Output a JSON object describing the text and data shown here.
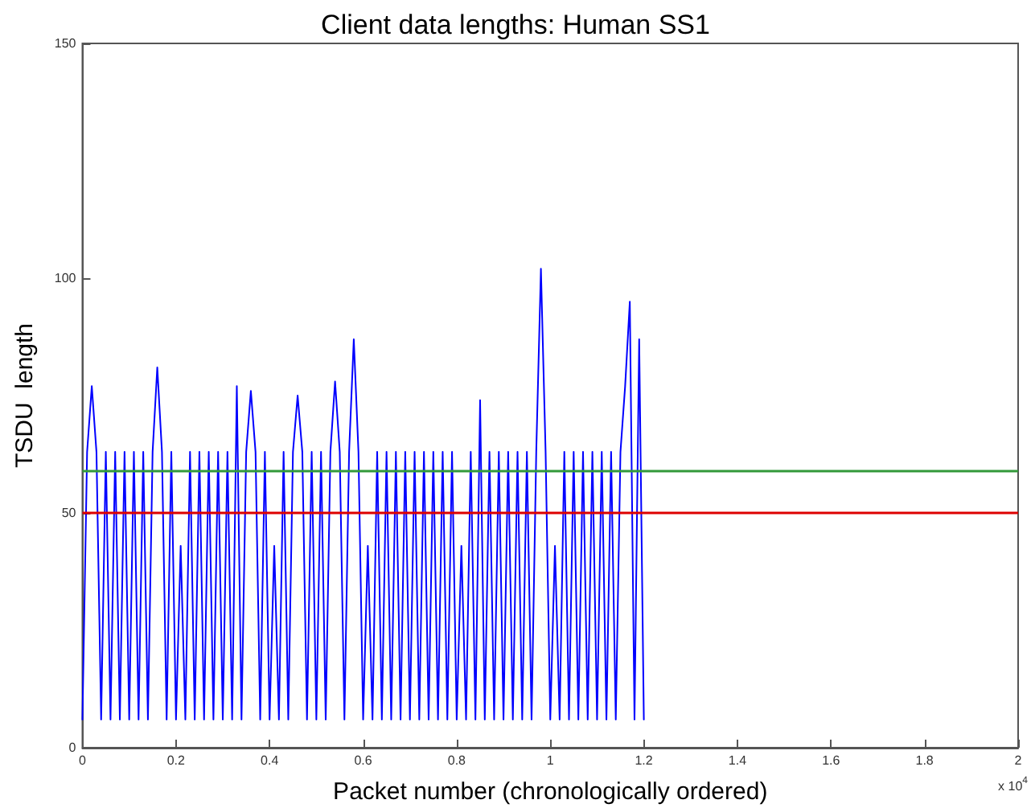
{
  "chart_data": {
    "type": "line",
    "title": "Client data lengths: Human SS1",
    "xlabel": "Packet number (chronologically ordered)",
    "ylabel": "TSDU  length",
    "annotations": [
      "x 10$^{4}$"
    ],
    "x": [
      0,
      0.01,
      0.02,
      0.03,
      0.04,
      0.05,
      0.06,
      0.07,
      0.08,
      0.09,
      0.1,
      0.11,
      0.12,
      0.13,
      0.14,
      0.15,
      0.16,
      0.17,
      0.18,
      0.19,
      0.2,
      0.21,
      0.22,
      0.23,
      0.24,
      0.25,
      0.26,
      0.27,
      0.28,
      0.29,
      0.3,
      0.31,
      0.32,
      0.33,
      0.34,
      0.35,
      0.36,
      0.37,
      0.38,
      0.39,
      0.4,
      0.41,
      0.42,
      0.43,
      0.44,
      0.45,
      0.46,
      0.47,
      0.48,
      0.49,
      0.5,
      0.51,
      0.52,
      0.53,
      0.54,
      0.55,
      0.56,
      0.57,
      0.58,
      0.59,
      0.6,
      0.61,
      0.62,
      0.63,
      0.64,
      0.65,
      0.66,
      0.67,
      0.68,
      0.69,
      0.7,
      0.71,
      0.72,
      0.73,
      0.74,
      0.75,
      0.76,
      0.77,
      0.78,
      0.79,
      0.8,
      0.81,
      0.82,
      0.83,
      0.84,
      0.85,
      0.86,
      0.87,
      0.88,
      0.89,
      0.9,
      0.91,
      0.92,
      0.93,
      0.94,
      0.95,
      0.96,
      0.97,
      0.98,
      0.99,
      1,
      1.01,
      1.02,
      1.03,
      1.04,
      1.05,
      1.06,
      1.07,
      1.08,
      1.09,
      1.1,
      1.11,
      1.12,
      1.13,
      1.14,
      1.15,
      1.16,
      1.17,
      1.18,
      1.19,
      1.2
    ],
    "series": [
      {
        "color": "#0000ff",
        "values": [
          6,
          63,
          77,
          63,
          6,
          63,
          6,
          63,
          6,
          63,
          6,
          63,
          6,
          63,
          6,
          63,
          81,
          63,
          6,
          63,
          6,
          43,
          6,
          63,
          6,
          63,
          6,
          63,
          6,
          63,
          6,
          63,
          6,
          77,
          6,
          63,
          76,
          63,
          6,
          63,
          6,
          43,
          6,
          63,
          6,
          63,
          75,
          63,
          6,
          63,
          6,
          63,
          6,
          63,
          78,
          63,
          6,
          63,
          87,
          63,
          6,
          43,
          6,
          63,
          6,
          63,
          6,
          63,
          6,
          63,
          6,
          63,
          6,
          63,
          6,
          63,
          6,
          63,
          6,
          63,
          6,
          43,
          6,
          63,
          6,
          74,
          6,
          63,
          6,
          63,
          6,
          63,
          6,
          63,
          6,
          63,
          6,
          63,
          102,
          63,
          6,
          43,
          6,
          63,
          6,
          63,
          6,
          63,
          6,
          63,
          6,
          63,
          6,
          63,
          6,
          63,
          77,
          95,
          6,
          87,
          6
        ]
      }
    ],
    "xlim": [
      0,
      2
    ],
    "xticks": [
      0,
      0.2,
      0.4,
      0.6,
      0.8,
      1,
      1.2,
      1.4,
      1.6,
      1.8,
      2
    ],
    "ylim": [
      0,
      150
    ],
    "yticks": [
      0,
      50,
      100,
      150
    ],
    "ref_lines": [
      {
        "axis": "y",
        "value": 59,
        "color": "#33993a"
      },
      {
        "axis": "y",
        "value": 50,
        "color": "#dd0000"
      }
    ],
    "marker": "none",
    "line_style": "solid",
    "grid": false
  }
}
